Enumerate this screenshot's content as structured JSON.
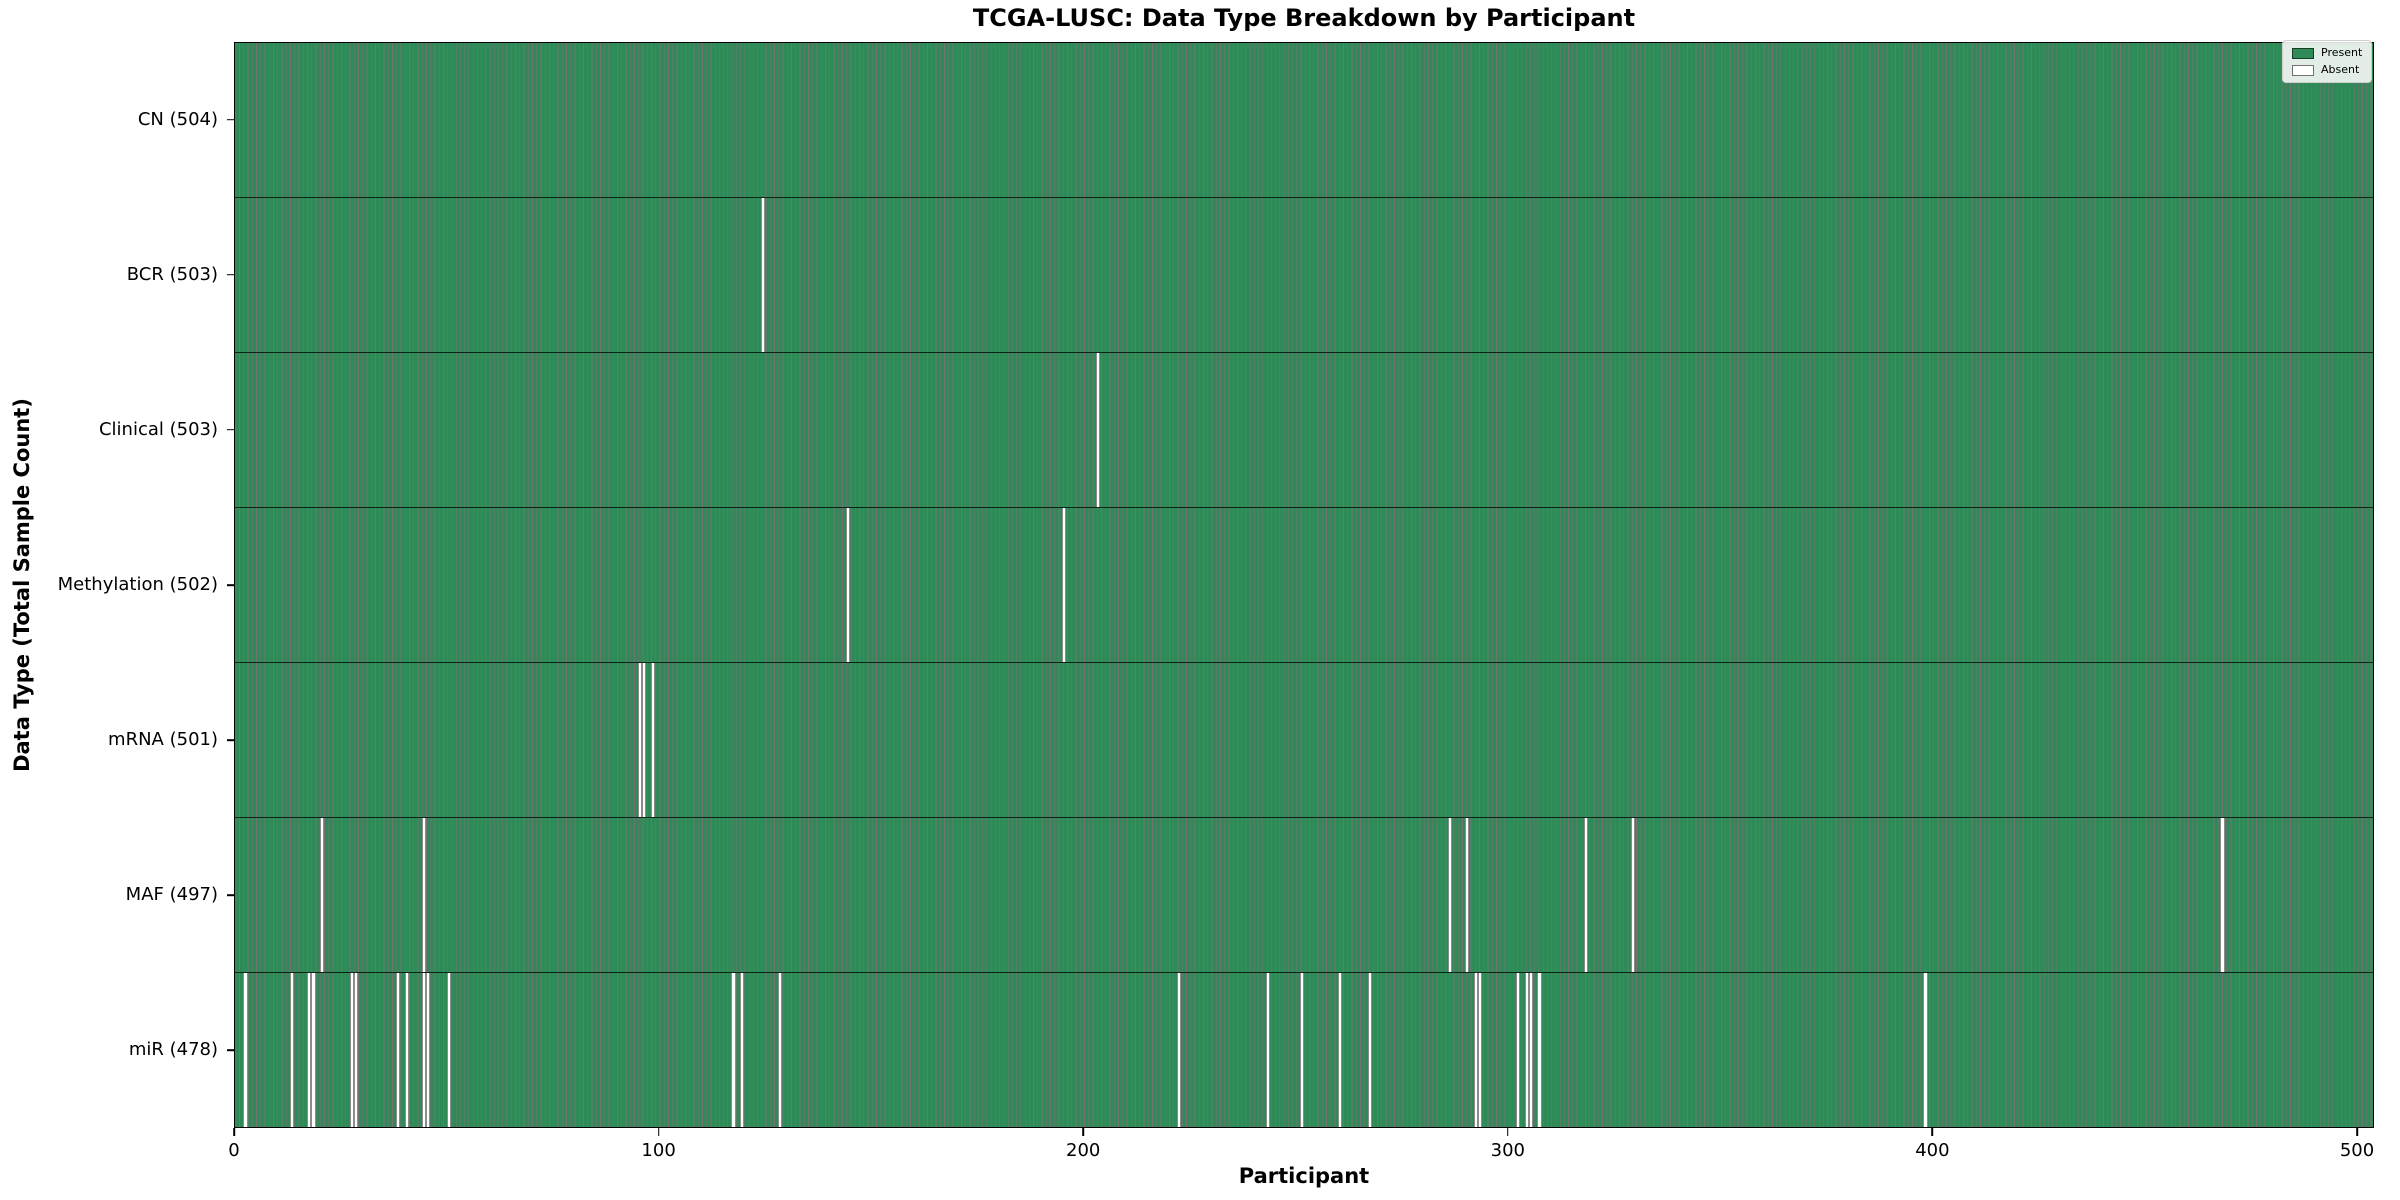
{
  "colors": {
    "present": "#2e8b57",
    "absent": "#ffffff",
    "bar_edge": "#000000",
    "background": "#ffffff"
  },
  "chart_data": {
    "type": "heatmap",
    "title": "TCGA-LUSC: Data Type Breakdown by Participant",
    "xlabel": "Participant",
    "ylabel": "Data Type (Total Sample Count)",
    "x_ticks": [
      0,
      100,
      200,
      300,
      400,
      500
    ],
    "xlim": [
      0,
      504
    ],
    "n_participants": 504,
    "grid": false,
    "legend_position": "upper right",
    "legend": [
      {
        "label": "Present",
        "color": "#2e8b57"
      },
      {
        "label": "Absent",
        "color": "#ffffff"
      }
    ],
    "rows": [
      {
        "data_type": "CN",
        "label": "CN (504)",
        "present_count": 504,
        "absent_participants": []
      },
      {
        "data_type": "BCR",
        "label": "BCR (503)",
        "present_count": 503,
        "absent_participants": [
          124
        ]
      },
      {
        "data_type": "Clinical",
        "label": "Clinical (503)",
        "present_count": 503,
        "absent_participants": [
          203
        ]
      },
      {
        "data_type": "Methylation",
        "label": "Methylation (502)",
        "present_count": 502,
        "absent_participants": [
          144,
          195
        ]
      },
      {
        "data_type": "mRNA",
        "label": "mRNA (501)",
        "present_count": 501,
        "absent_participants": [
          95,
          96,
          98
        ]
      },
      {
        "data_type": "MAF",
        "label": "MAF (497)",
        "present_count": 497,
        "absent_participants": [
          20,
          44,
          286,
          290,
          318,
          329,
          468
        ]
      },
      {
        "data_type": "miR",
        "label": "miR (478)",
        "present_count": 478,
        "absent_participants": [
          2,
          13,
          17,
          18,
          27,
          28,
          38,
          40,
          44,
          45,
          50,
          117,
          119,
          128,
          222,
          243,
          251,
          260,
          267,
          292,
          293,
          302,
          304,
          305,
          307,
          398
        ]
      }
    ]
  }
}
